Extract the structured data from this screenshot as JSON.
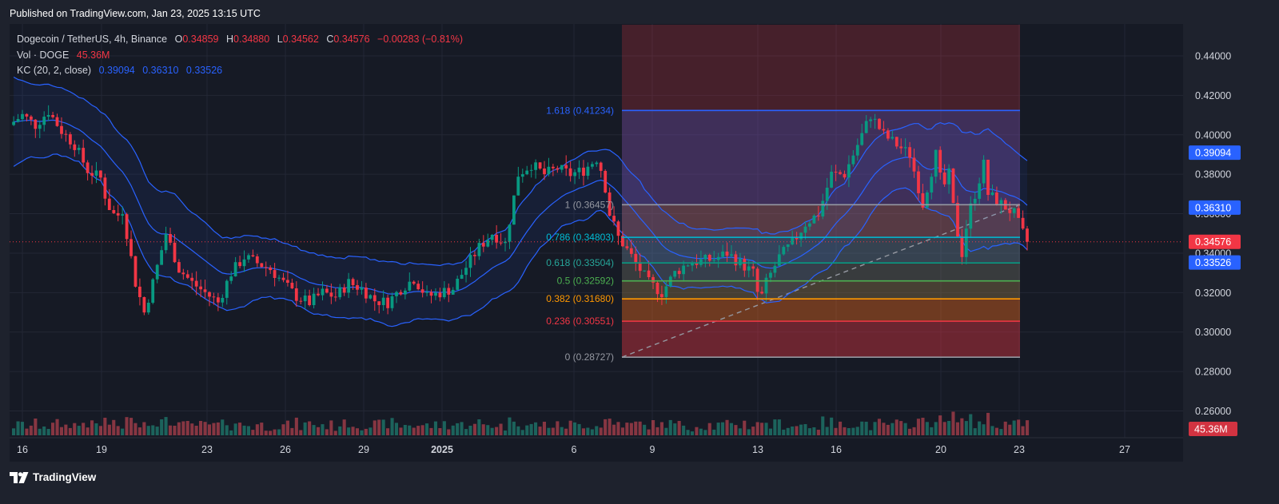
{
  "header": {
    "published": "Published on TradingView.com, Jan 23, 2025 13:15 UTC"
  },
  "legend": {
    "symbol": "Dogecoin / TetherUS, 4h, Binance",
    "open_label": "O",
    "open": "0.34859",
    "high_label": "H",
    "high": "0.34880",
    "low_label": "L",
    "low": "0.34562",
    "close_label": "C",
    "close": "0.34576",
    "change": "−0.00283 (−0.81%)",
    "vol_label": "Vol · DOGE",
    "vol_value": "45.36M",
    "kc_label": "KC (20, 2, close)",
    "kc_upper": "0.39094",
    "kc_basis": "0.36310",
    "kc_lower": "0.33526"
  },
  "footer": {
    "brand": "TradingView",
    "logo_icon": "tradingview-logo-icon"
  },
  "chart_data": {
    "type": "candlestick",
    "symbol": "DOGE/USDT",
    "interval": "4h",
    "exchange": "Binance",
    "ylim": [
      0.25,
      0.45
    ],
    "y_ticks": [
      "0.26000",
      "0.28000",
      "0.30000",
      "0.32000",
      "0.34000",
      "0.36000",
      "0.38000",
      "0.40000",
      "0.42000",
      "0.44000"
    ],
    "x_ticks": [
      "16",
      "19",
      "23",
      "26",
      "29",
      "2025",
      "6",
      "9",
      "13",
      "16",
      "20",
      "23",
      "27"
    ],
    "price_labels": [
      {
        "value": "0.39094",
        "price": 0.39094,
        "color": "#2962ff"
      },
      {
        "value": "0.36310",
        "price": 0.3631,
        "color": "#2962ff"
      },
      {
        "value": "0.34576",
        "price": 0.34576,
        "color": "#f23645"
      },
      {
        "value": "0.33526",
        "price": 0.33526,
        "color": "#2962ff"
      }
    ],
    "volume_label": "45.36M",
    "fibonacci": [
      {
        "label": "1.618 (0.41234)",
        "ratio": "1.618",
        "price": 0.41234,
        "color": "#2962ff",
        "label_color": "#2962ff"
      },
      {
        "label": "1 (0.36457)",
        "ratio": "1",
        "price": 0.36457,
        "color": "#9598a1",
        "label_color": "#9598a1"
      },
      {
        "label": "0.786 (0.34803)",
        "ratio": "0.786",
        "price": 0.34803,
        "color": "#00bcd4",
        "label_color": "#00bcd4"
      },
      {
        "label": "0.618 (0.33504)",
        "ratio": "0.618",
        "price": 0.33504,
        "color": "#089981",
        "label_color": "#26a69a"
      },
      {
        "label": "0.5 (0.32592)",
        "ratio": "0.5",
        "price": 0.32592,
        "color": "#4caf50",
        "label_color": "#4caf50"
      },
      {
        "label": "0.382 (0.31680)",
        "ratio": "0.382",
        "price": 0.3168,
        "color": "#ff9800",
        "label_color": "#ff9800"
      },
      {
        "label": "0.236 (0.30551)",
        "ratio": "0.236",
        "price": 0.30551,
        "color": "#f23645",
        "label_color": "#f23645"
      },
      {
        "label": "0 (0.28727)",
        "ratio": "0",
        "price": 0.28727,
        "color": "#9598a1",
        "label_color": "#9598a1"
      }
    ],
    "keltner_current": {
      "upper": 0.39094,
      "basis": 0.3631,
      "lower": 0.33526
    },
    "close_path": [
      [
        "Dec 15 12:00",
        0.405
      ],
      [
        "Dec 16",
        0.41
      ],
      [
        "Dec 16 12:00",
        0.405
      ],
      [
        "Dec 17",
        0.412
      ],
      [
        "Dec 17 12:00",
        0.402
      ],
      [
        "Dec 18",
        0.395
      ],
      [
        "Dec 18 12:00",
        0.382
      ],
      [
        "Dec 19",
        0.378
      ],
      [
        "Dec 19 06:00",
        0.365
      ],
      [
        "Dec 19 14:00",
        0.358
      ],
      [
        "Dec 19 20:00",
        0.362
      ],
      [
        "Dec 20",
        0.35
      ],
      [
        "Dec 20 08:00",
        0.325
      ],
      [
        "Dec 20 16:00",
        0.31
      ],
      [
        "Dec 21",
        0.325
      ],
      [
        "Dec 21 12:00",
        0.35
      ],
      [
        "Dec 22",
        0.332
      ],
      [
        "Dec 22 12:00",
        0.325
      ],
      [
        "Dec 23",
        0.32
      ],
      [
        "Dec 23 12:00",
        0.315
      ],
      [
        "Dec 24",
        0.33
      ],
      [
        "Dec 24 12:00",
        0.338
      ],
      [
        "Dec 25",
        0.335
      ],
      [
        "Dec 25 12:00",
        0.332
      ],
      [
        "Dec 26",
        0.325
      ],
      [
        "Dec 26 12:00",
        0.318
      ],
      [
        "Dec 27",
        0.315
      ],
      [
        "Dec 27 12:00",
        0.32
      ],
      [
        "Dec 28",
        0.318
      ],
      [
        "Dec 28 12:00",
        0.325
      ],
      [
        "Dec 29",
        0.322
      ],
      [
        "Dec 29 12:00",
        0.316
      ],
      [
        "Dec 30",
        0.315
      ],
      [
        "Dec 30 12:00",
        0.322
      ],
      [
        "Dec 31",
        0.327
      ],
      [
        "Dec 31 12:00",
        0.318
      ],
      [
        "Jan 1",
        0.32
      ],
      [
        "Jan 1 12:00",
        0.322
      ],
      [
        "Jan 2",
        0.333
      ],
      [
        "Jan 2 12:00",
        0.343
      ],
      [
        "Jan 3",
        0.35
      ],
      [
        "Jan 3 12:00",
        0.345
      ],
      [
        "Jan 4",
        0.38
      ],
      [
        "Jan 4 12:00",
        0.385
      ],
      [
        "Jan 5",
        0.38
      ],
      [
        "Jan 5 12:00",
        0.383
      ],
      [
        "Jan 6",
        0.38
      ],
      [
        "Jan 6 12:00",
        0.382
      ],
      [
        "Jan 7",
        0.388
      ],
      [
        "Jan 7 06:00",
        0.38
      ],
      [
        "Jan 7 12:00",
        0.36
      ],
      [
        "Jan 7 20:00",
        0.348
      ],
      [
        "Jan 8",
        0.345
      ],
      [
        "Jan 8 12:00",
        0.335
      ],
      [
        "Jan 9",
        0.325
      ],
      [
        "Jan 9 12:00",
        0.32
      ],
      [
        "Jan 10",
        0.33
      ],
      [
        "Jan 10 12:00",
        0.335
      ],
      [
        "Jan 11",
        0.336
      ],
      [
        "Jan 11 12:00",
        0.337
      ],
      [
        "Jan 12",
        0.34
      ],
      [
        "Jan 12 12:00",
        0.335
      ],
      [
        "Jan 13",
        0.33
      ],
      [
        "Jan 13 06:00",
        0.315
      ],
      [
        "Jan 13 12:00",
        0.325
      ],
      [
        "Jan 14",
        0.338
      ],
      [
        "Jan 14 12:00",
        0.345
      ],
      [
        "Jan 15",
        0.355
      ],
      [
        "Jan 15 12:00",
        0.36
      ],
      [
        "Jan 16",
        0.38
      ],
      [
        "Jan 16 12:00",
        0.38
      ],
      [
        "Jan 17",
        0.395
      ],
      [
        "Jan 17 12:00",
        0.41
      ],
      [
        "Jan 18",
        0.4
      ],
      [
        "Jan 18 12:00",
        0.395
      ],
      [
        "Jan 19",
        0.39
      ],
      [
        "Jan 19 12:00",
        0.365
      ],
      [
        "Jan 20",
        0.39
      ],
      [
        "Jan 20 06:00",
        0.372
      ],
      [
        "Jan 20 12:00",
        0.38
      ],
      [
        "Jan 20 18:00",
        0.355
      ],
      [
        "Jan 21",
        0.34
      ],
      [
        "Jan 21 06:00",
        0.36
      ],
      [
        "Jan 21 12:00",
        0.37
      ],
      [
        "Jan 21 20:00",
        0.385
      ],
      [
        "Jan 22",
        0.37
      ],
      [
        "Jan 22 12:00",
        0.365
      ],
      [
        "Jan 23",
        0.36
      ],
      [
        "Jan 23 08:00",
        0.35
      ],
      [
        "Jan 23 12:00",
        0.34576
      ]
    ],
    "grid": "on",
    "legend_position": "top-left"
  }
}
